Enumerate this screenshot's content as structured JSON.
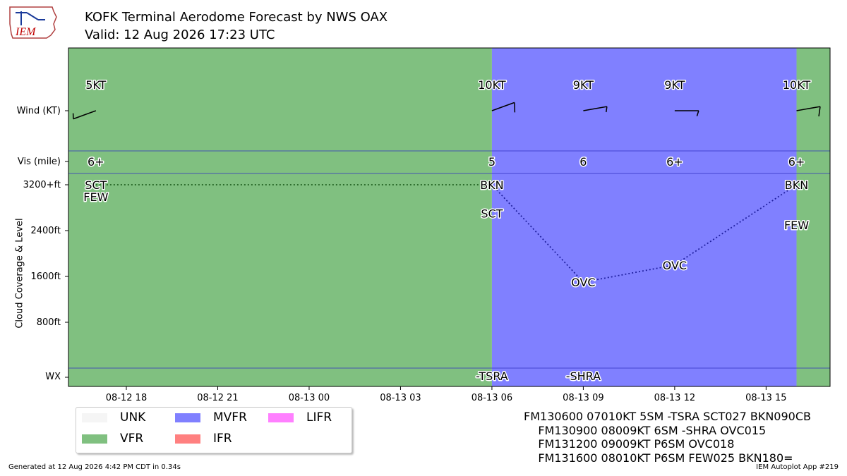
{
  "header": {
    "title_line1": "KOFK Terminal Aerodome Forecast by NWS OAX",
    "title_line2": "Valid: 12 Aug 2026 17:23 UTC",
    "logo_text": "IEM"
  },
  "colors": {
    "VFR": "#80c080",
    "MVFR": "#8080ff",
    "IFR": "#ff8080",
    "LIFR": "#ff80ff",
    "UNK": "#f5f5f5"
  },
  "chart_data": {
    "type": "line",
    "y_rows": {
      "wind": "Wind (KT)",
      "vis": "Vis (mile)",
      "wx": "WX"
    },
    "y_ticks": [
      "3200+ft",
      "2400ft",
      "1600ft",
      "800ft"
    ],
    "y_tick_values": [
      3200,
      2400,
      1600,
      800
    ],
    "ylabel": "Cloud Coverage & Level",
    "x_ticks": [
      "08-12 18",
      "08-12 21",
      "08-13 00",
      "08-13 03",
      "08-13 06",
      "08-13 09",
      "08-13 12",
      "08-13 15"
    ],
    "x_tick_hours": [
      18,
      21,
      24,
      27,
      30,
      33,
      36,
      39
    ],
    "xlim_hours": [
      16.1,
      41.1
    ],
    "ylim_ft": [
      0,
      3200
    ],
    "periods": [
      {
        "start": 16.1,
        "end": 30,
        "category": "VFR"
      },
      {
        "start": 30,
        "end": 40,
        "category": "MVFR"
      },
      {
        "start": 40,
        "end": 41.1,
        "category": "VFR"
      }
    ],
    "forecasts": [
      {
        "time": 17.0,
        "wind_label": "5KT",
        "wind_dir": 250,
        "wind_speed": 5,
        "vis": "6+",
        "wx": "",
        "clouds": [
          {
            "cover": "SCT",
            "level": 3200
          },
          {
            "cover": "FEW",
            "level": 2990
          }
        ]
      },
      {
        "time": 30.0,
        "wind_label": "10KT",
        "wind_dir": 70,
        "wind_speed": 10,
        "vis": "5",
        "wx": "-TSRA",
        "clouds": [
          {
            "cover": "BKN",
            "level": 3200
          },
          {
            "cover": "SCT",
            "level": 2700
          }
        ]
      },
      {
        "time": 33.0,
        "wind_label": "9KT",
        "wind_dir": 80,
        "wind_speed": 9,
        "vis": "6",
        "wx": "-SHRA",
        "clouds": [
          {
            "cover": "OVC",
            "level": 1500
          }
        ]
      },
      {
        "time": 36.0,
        "wind_label": "9KT",
        "wind_dir": 90,
        "wind_speed": 9,
        "vis": "6+",
        "wx": "",
        "clouds": [
          {
            "cover": "OVC",
            "level": 1800
          }
        ]
      },
      {
        "time": 40.0,
        "wind_label": "10KT",
        "wind_dir": 80,
        "wind_speed": 10,
        "vis": "6+",
        "wx": "",
        "clouds": [
          {
            "cover": "BKN",
            "level": 3200
          },
          {
            "cover": "FEW",
            "level": 2500
          }
        ]
      }
    ],
    "lowest_cloud_line": [
      {
        "time": 17.0,
        "level": 3200
      },
      {
        "time": 30.0,
        "level": 3200
      },
      {
        "time": 33.0,
        "level": 1500
      },
      {
        "time": 36.0,
        "level": 1800
      },
      {
        "time": 40.0,
        "level": 3200
      }
    ]
  },
  "legend": [
    {
      "label": "UNK",
      "color_key": "UNK"
    },
    {
      "label": "VFR",
      "color_key": "VFR"
    },
    {
      "label": "MVFR",
      "color_key": "MVFR"
    },
    {
      "label": "IFR",
      "color_key": "IFR"
    },
    {
      "label": "LIFR",
      "color_key": "LIFR"
    }
  ],
  "taf_text": {
    "line1": "FM130600 07010KT 5SM -TSRA SCT027 BKN090CB",
    "line2": "    FM130900 08009KT 6SM -SHRA OVC015",
    "line3": "    FM131200 09009KT P6SM OVC018",
    "line4": "    FM131600 08010KT P6SM FEW025 BKN180="
  },
  "footer": {
    "left": "Generated at 12 Aug 2026 4:42 PM CDT in 0.34s",
    "right": "IEM Autoplot App #219"
  }
}
